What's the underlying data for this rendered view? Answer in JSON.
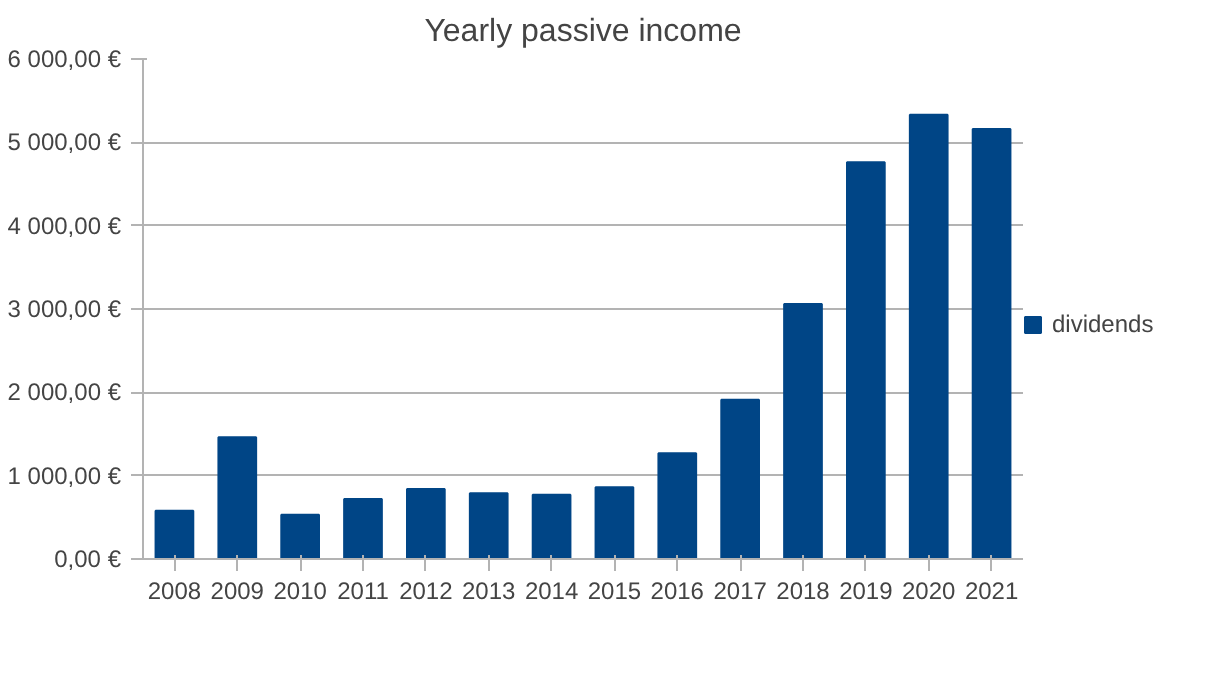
{
  "chart_data": {
    "type": "bar",
    "title": "Yearly passive income",
    "categories": [
      "2008",
      "2009",
      "2010",
      "2011",
      "2012",
      "2013",
      "2014",
      "2015",
      "2016",
      "2017",
      "2018",
      "2019",
      "2020",
      "2021"
    ],
    "series": [
      {
        "name": "dividends",
        "color": "#004586",
        "values": [
          580,
          1460,
          530,
          720,
          840,
          790,
          770,
          860,
          1270,
          1910,
          3060,
          4760,
          5330,
          5160
        ]
      }
    ],
    "ylim": [
      0,
      6000
    ],
    "yticks": [
      {
        "value": 0,
        "label": "0,00 €"
      },
      {
        "value": 1000,
        "label": "1 000,00 €"
      },
      {
        "value": 2000,
        "label": "2 000,00 €"
      },
      {
        "value": 3000,
        "label": "3 000,00 €"
      },
      {
        "value": 4000,
        "label": "4 000,00 €"
      },
      {
        "value": 5000,
        "label": "5 000,00 €"
      },
      {
        "value": 6000,
        "label": "6 000,00 €"
      }
    ],
    "grid": "y",
    "legend": "right"
  }
}
